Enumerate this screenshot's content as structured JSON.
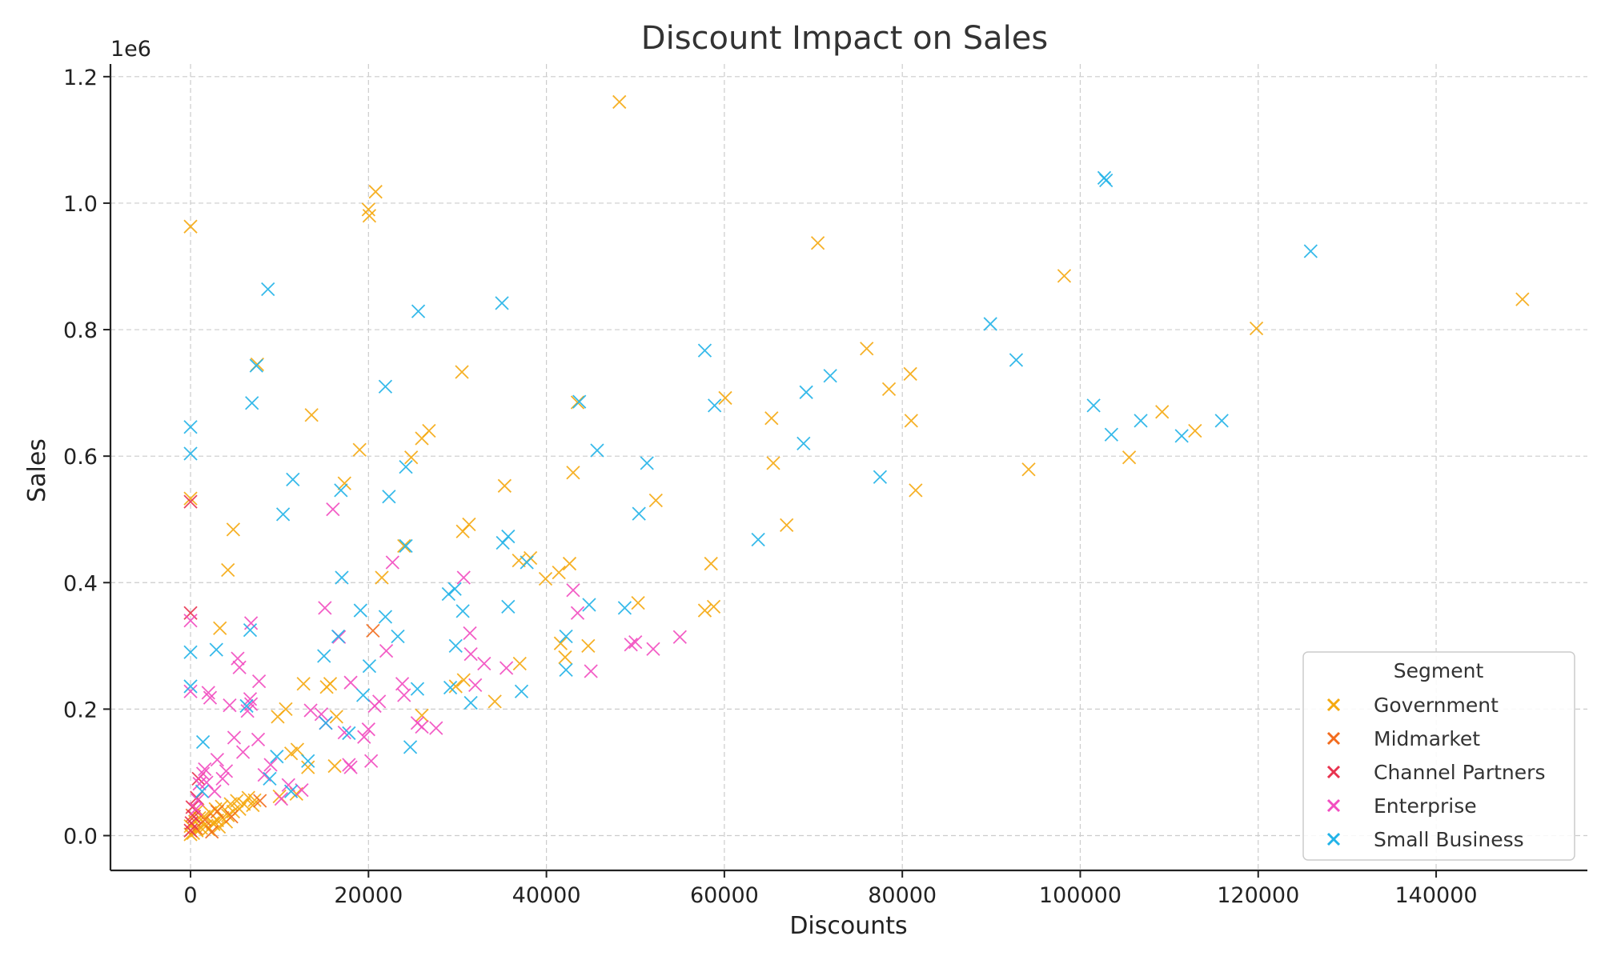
{
  "chart_data": {
    "type": "scatter",
    "title": "Discount Impact on Sales",
    "xlabel": "Discounts",
    "ylabel": "Sales",
    "y_offset_label": "1e6",
    "xlim": [
      -9000,
      157000
    ],
    "ylim": [
      -55000,
      1220000
    ],
    "x_ticks": [
      0,
      20000,
      40000,
      60000,
      80000,
      100000,
      120000,
      140000
    ],
    "x_tick_labels": [
      "0",
      "20000",
      "40000",
      "60000",
      "80000",
      "100000",
      "120000",
      "140000"
    ],
    "y_ticks": [
      0,
      200000,
      400000,
      600000,
      800000,
      1000000,
      1200000
    ],
    "y_tick_labels": [
      "0.0",
      "0.2",
      "0.4",
      "0.6",
      "0.8",
      "1.0",
      "1.2"
    ],
    "grid": true,
    "marker": "x",
    "legend": {
      "title": "Segment",
      "placement": "lower-right"
    },
    "series": [
      {
        "name": "Government",
        "color": "#f5a90f",
        "points": [
          [
            48200,
            1160000
          ],
          [
            0,
            963000
          ],
          [
            20800,
            1018000
          ],
          [
            20000,
            990000
          ],
          [
            20100,
            980000
          ],
          [
            70500,
            937000
          ],
          [
            149700,
            848000
          ],
          [
            98200,
            885000
          ],
          [
            119800,
            802000
          ],
          [
            7500,
            745000
          ],
          [
            30500,
            733000
          ],
          [
            76000,
            770000
          ],
          [
            80900,
            730000
          ],
          [
            78500,
            706000
          ],
          [
            60100,
            692000
          ],
          [
            43500,
            685000
          ],
          [
            109200,
            670000
          ],
          [
            13600,
            665000
          ],
          [
            65300,
            660000
          ],
          [
            81000,
            656000
          ],
          [
            112900,
            640000
          ],
          [
            26800,
            640000
          ],
          [
            26000,
            628000
          ],
          [
            19000,
            610000
          ],
          [
            24800,
            598000
          ],
          [
            105500,
            598000
          ],
          [
            65500,
            589000
          ],
          [
            94200,
            579000
          ],
          [
            43000,
            574000
          ],
          [
            17300,
            557000
          ],
          [
            35300,
            553000
          ],
          [
            81500,
            546000
          ],
          [
            0,
            533000
          ],
          [
            52300,
            530000
          ],
          [
            67000,
            491000
          ],
          [
            31300,
            492000
          ],
          [
            30600,
            481000
          ],
          [
            4800,
            484000
          ],
          [
            24000,
            458000
          ],
          [
            38200,
            439000
          ],
          [
            36900,
            435000
          ],
          [
            42600,
            430000
          ],
          [
            58500,
            430000
          ],
          [
            4200,
            420000
          ],
          [
            41400,
            416000
          ],
          [
            39900,
            406000
          ],
          [
            21500,
            408000
          ],
          [
            50300,
            368000
          ],
          [
            58800,
            362000
          ],
          [
            57800,
            356000
          ],
          [
            3300,
            328000
          ],
          [
            41600,
            304000
          ],
          [
            44700,
            300000
          ],
          [
            42100,
            282000
          ],
          [
            37000,
            272000
          ],
          [
            30700,
            246000
          ],
          [
            15700,
            240000
          ],
          [
            12700,
            240000
          ],
          [
            29800,
            236000
          ],
          [
            15300,
            235000
          ],
          [
            34200,
            212000
          ],
          [
            16400,
            188000
          ],
          [
            11300,
            130000
          ],
          [
            12000,
            136000
          ],
          [
            10700,
            200000
          ],
          [
            9800,
            188000
          ],
          [
            26000,
            190000
          ],
          [
            13200,
            108000
          ],
          [
            16200,
            110000
          ],
          [
            10000,
            62000
          ],
          [
            11900,
            66000
          ],
          [
            7200,
            56000
          ],
          [
            6000,
            50000
          ],
          [
            5500,
            42000
          ],
          [
            4800,
            38000
          ],
          [
            4200,
            32000
          ],
          [
            3600,
            28000
          ],
          [
            3000,
            24000
          ],
          [
            2500,
            20000
          ],
          [
            1800,
            16000
          ],
          [
            1200,
            12000
          ],
          [
            700,
            8000
          ],
          [
            300,
            4000
          ],
          [
            0,
            2000
          ],
          [
            0,
            15000
          ],
          [
            500,
            22000
          ],
          [
            1500,
            30000
          ],
          [
            2200,
            36000
          ],
          [
            2800,
            42000
          ],
          [
            3500,
            46000
          ],
          [
            4500,
            50000
          ],
          [
            5200,
            55000
          ],
          [
            6500,
            60000
          ],
          [
            7000,
            48000
          ],
          [
            800,
            40000
          ],
          [
            1000,
            28000
          ],
          [
            2000,
            10000
          ],
          [
            2600,
            18000
          ],
          [
            3200,
            14000
          ],
          [
            4000,
            22000
          ]
        ]
      },
      {
        "name": "Midmarket",
        "color": "#f26b1d",
        "points": [
          [
            20500,
            324000
          ],
          [
            3000,
            38000
          ],
          [
            1600,
            25000
          ],
          [
            600,
            12000
          ],
          [
            4600,
            30000
          ],
          [
            200,
            32000
          ],
          [
            7800,
            55000
          ],
          [
            2400,
            6000
          ]
        ]
      },
      {
        "name": "Channel Partners",
        "color": "#e8334f",
        "points": [
          [
            0,
            352000
          ],
          [
            0,
            528000
          ],
          [
            900,
            90000
          ],
          [
            200,
            45000
          ],
          [
            100,
            20000
          ],
          [
            700,
            60000
          ],
          [
            0,
            8000
          ],
          [
            400,
            30000
          ]
        ]
      },
      {
        "name": "Enterprise",
        "color": "#f24dc0",
        "points": [
          [
            0,
            340000
          ],
          [
            0,
            228000
          ],
          [
            16000,
            516000
          ],
          [
            30700,
            408000
          ],
          [
            31400,
            320000
          ],
          [
            35500,
            265000
          ],
          [
            43000,
            388000
          ],
          [
            43500,
            352000
          ],
          [
            45000,
            260000
          ],
          [
            49500,
            302000
          ],
          [
            52000,
            295000
          ],
          [
            55000,
            314000
          ],
          [
            50000,
            306000
          ],
          [
            33000,
            272000
          ],
          [
            32000,
            238000
          ],
          [
            31500,
            287000
          ],
          [
            22700,
            432000
          ],
          [
            24000,
            222000
          ],
          [
            23800,
            240000
          ],
          [
            22000,
            292000
          ],
          [
            21200,
            212000
          ],
          [
            20700,
            205000
          ],
          [
            20000,
            168000
          ],
          [
            19500,
            156000
          ],
          [
            18000,
            242000
          ],
          [
            17800,
            112000
          ],
          [
            17300,
            163000
          ],
          [
            16700,
            314000
          ],
          [
            15100,
            360000
          ],
          [
            14700,
            192000
          ],
          [
            15200,
            178000
          ],
          [
            13500,
            198000
          ],
          [
            12500,
            72000
          ],
          [
            11000,
            80000
          ],
          [
            10200,
            58000
          ],
          [
            8300,
            96000
          ],
          [
            7700,
            244000
          ],
          [
            6800,
            208000
          ],
          [
            6400,
            197000
          ],
          [
            6700,
            216000
          ],
          [
            5900,
            132000
          ],
          [
            5500,
            266000
          ],
          [
            5300,
            280000
          ],
          [
            4900,
            155000
          ],
          [
            4400,
            206000
          ],
          [
            3600,
            90000
          ],
          [
            2700,
            70000
          ],
          [
            2200,
            218000
          ],
          [
            2000,
            226000
          ],
          [
            1800,
            84000
          ],
          [
            1600,
            105000
          ],
          [
            1400,
            98000
          ],
          [
            1000,
            82000
          ],
          [
            800,
            56000
          ],
          [
            600,
            42000
          ],
          [
            26000,
            172000
          ],
          [
            25500,
            178000
          ],
          [
            27600,
            170000
          ],
          [
            20300,
            118000
          ],
          [
            18000,
            108000
          ],
          [
            6800,
            336000
          ],
          [
            4000,
            102000
          ],
          [
            3000,
            120000
          ],
          [
            9000,
            112000
          ],
          [
            7600,
            152000
          ]
        ]
      },
      {
        "name": "Small Business",
        "color": "#21b3e8",
        "points": [
          [
            102700,
            1040000
          ],
          [
            102900,
            1036000
          ],
          [
            125900,
            924000
          ],
          [
            8700,
            864000
          ],
          [
            35000,
            842000
          ],
          [
            25600,
            829000
          ],
          [
            89900,
            809000
          ],
          [
            92800,
            752000
          ],
          [
            57800,
            767000
          ],
          [
            71900,
            727000
          ],
          [
            69200,
            701000
          ],
          [
            7400,
            743000
          ],
          [
            21900,
            710000
          ],
          [
            6900,
            684000
          ],
          [
            43700,
            686000
          ],
          [
            58900,
            680000
          ],
          [
            101500,
            680000
          ],
          [
            115900,
            656000
          ],
          [
            106800,
            656000
          ],
          [
            103500,
            634000
          ],
          [
            111400,
            632000
          ],
          [
            68900,
            620000
          ],
          [
            45700,
            609000
          ],
          [
            51300,
            589000
          ],
          [
            24200,
            583000
          ],
          [
            77500,
            567000
          ],
          [
            11500,
            563000
          ],
          [
            16900,
            546000
          ],
          [
            22300,
            536000
          ],
          [
            0,
            646000
          ],
          [
            0,
            604000
          ],
          [
            10400,
            508000
          ],
          [
            50400,
            509000
          ],
          [
            35700,
            473000
          ],
          [
            35100,
            463000
          ],
          [
            63800,
            468000
          ],
          [
            24200,
            458000
          ],
          [
            37800,
            432000
          ],
          [
            17000,
            408000
          ],
          [
            29700,
            390000
          ],
          [
            29000,
            382000
          ],
          [
            35700,
            362000
          ],
          [
            44800,
            365000
          ],
          [
            48800,
            360000
          ],
          [
            19100,
            356000
          ],
          [
            21900,
            346000
          ],
          [
            30600,
            355000
          ],
          [
            15000,
            284000
          ],
          [
            16600,
            315000
          ],
          [
            23300,
            315000
          ],
          [
            42200,
            315000
          ],
          [
            42200,
            262000
          ],
          [
            29800,
            300000
          ],
          [
            20100,
            268000
          ],
          [
            25500,
            232000
          ],
          [
            31500,
            210000
          ],
          [
            37200,
            228000
          ],
          [
            29200,
            234000
          ],
          [
            19400,
            222000
          ],
          [
            13200,
            118000
          ],
          [
            15200,
            178000
          ],
          [
            17800,
            162000
          ],
          [
            6300,
            205000
          ],
          [
            6700,
            325000
          ],
          [
            2900,
            294000
          ],
          [
            0,
            290000
          ],
          [
            0,
            236000
          ],
          [
            1400,
            148000
          ],
          [
            9700,
            125000
          ],
          [
            8900,
            90000
          ],
          [
            11300,
            70000
          ],
          [
            1300,
            70000
          ],
          [
            24700,
            140000
          ]
        ]
      }
    ]
  }
}
